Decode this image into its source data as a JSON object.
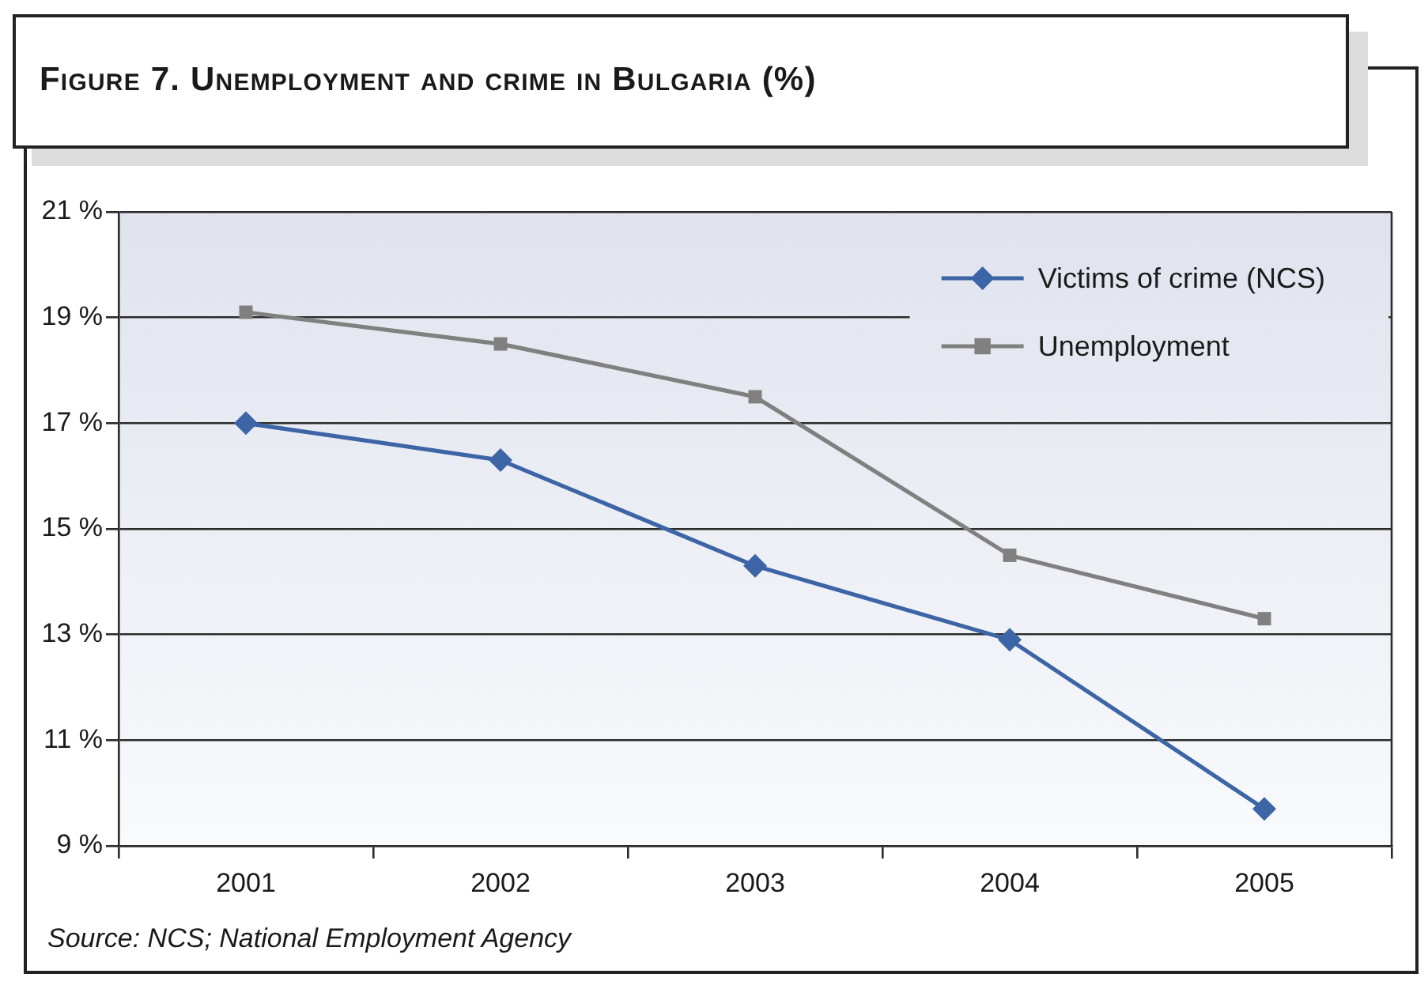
{
  "chart_data": {
    "type": "line",
    "title": "Figure 7. Unemployment and crime in Bulgaria (%)",
    "categories": [
      "2001",
      "2002",
      "2003",
      "2004",
      "2005"
    ],
    "series": [
      {
        "name": "Victims of crime (NCS)",
        "color": "#3d65a5",
        "marker": "diamond",
        "values": [
          17.0,
          16.3,
          14.3,
          12.9,
          9.7
        ]
      },
      {
        "name": "Unemployment",
        "color": "#808080",
        "marker": "square",
        "values": [
          19.1,
          18.5,
          17.5,
          14.5,
          13.3
        ]
      }
    ],
    "ylim": [
      9,
      21
    ],
    "yticks": [
      {
        "value": 9,
        "label": "9 %"
      },
      {
        "value": 11,
        "label": "11 %"
      },
      {
        "value": 13,
        "label": "13 %"
      },
      {
        "value": 15,
        "label": "15 %"
      },
      {
        "value": 17,
        "label": "17 %"
      },
      {
        "value": 19,
        "label": "19 %"
      },
      {
        "value": 21,
        "label": "21 %"
      }
    ],
    "grid": "y",
    "legend": "top right",
    "annotations": [
      "Source: NCS; National Employment Agency"
    ]
  }
}
